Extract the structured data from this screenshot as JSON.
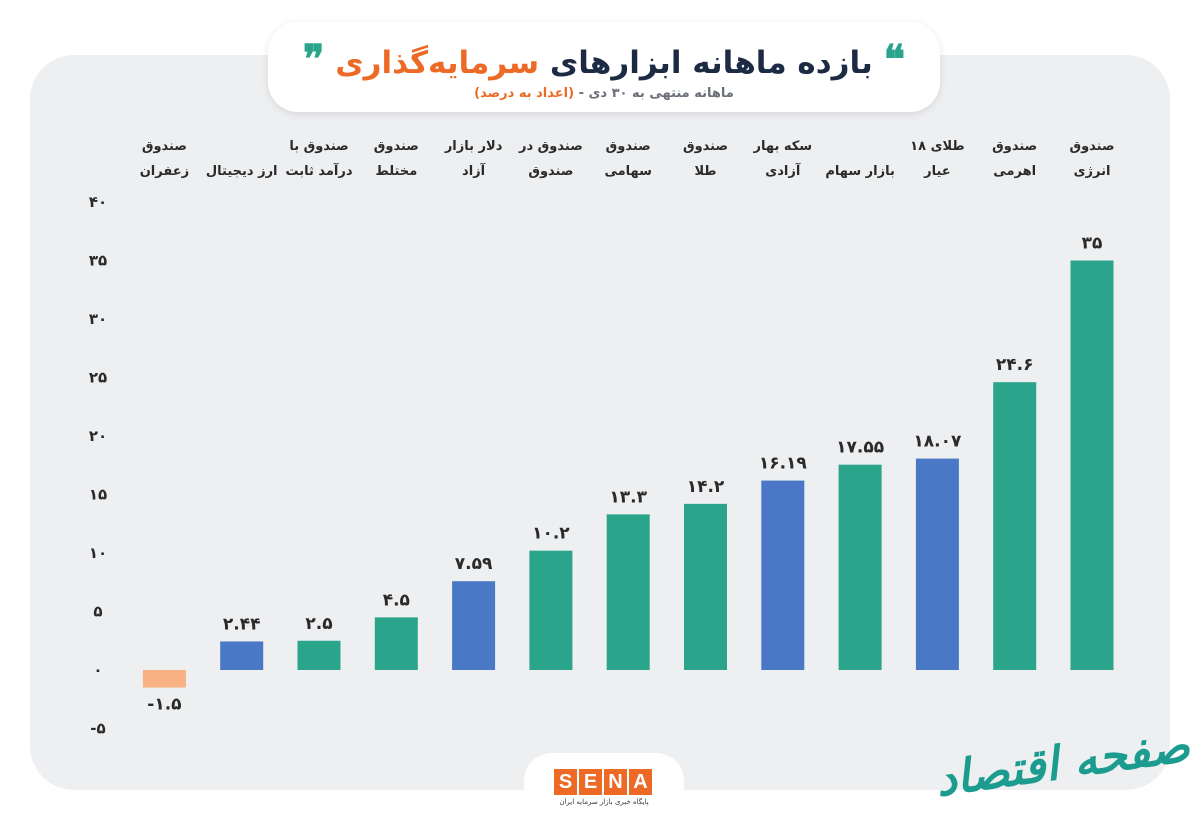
{
  "header": {
    "title_main": "بازده ماهانه ابزارهای",
    "title_accent": "سرمایه‌گذاری",
    "quote_open": "❝",
    "quote_close": "❞",
    "subtitle": "ماهانه منتهی به ۳۰ دی -",
    "subtitle_note": "(اعداد به درصد)"
  },
  "chart_data": {
    "type": "bar",
    "categories": [
      "صندوق انرژی",
      "صندوق اهرمی",
      "طلای ۱۸ عیار",
      "بازار سهام",
      "سکه بهار آزادی",
      "صندوق طلا",
      "صندوق سهامی",
      "صندوق در صندوق",
      "دلار بازار آزاد",
      "صندوق مختلط",
      "صندوق با درآمد ثابت",
      "ارز دیجیتال",
      "صندوق زعفران"
    ],
    "category_lines": [
      [
        "صندوق",
        "انرژی"
      ],
      [
        "صندوق",
        "اهرمی"
      ],
      [
        "طلای ۱۸",
        "عیار"
      ],
      [
        "",
        "بازار سهام"
      ],
      [
        "سکه بهار",
        "آزادی"
      ],
      [
        "صندوق",
        "طلا"
      ],
      [
        "صندوق",
        "سهامی"
      ],
      [
        "صندوق در",
        "صندوق"
      ],
      [
        "دلار بازار",
        "آزاد"
      ],
      [
        "صندوق",
        "مختلط"
      ],
      [
        "صندوق با",
        "درآمد ثابت"
      ],
      [
        "",
        "ارز دیجیتال"
      ],
      [
        "صندوق",
        "زعفران"
      ]
    ],
    "values": [
      35,
      24.6,
      18.07,
      17.55,
      16.19,
      14.2,
      13.3,
      10.2,
      7.59,
      4.5,
      2.5,
      2.44,
      -1.5
    ],
    "value_labels": [
      "۳۵",
      "۲۴.۶",
      "۱۸.۰۷",
      "۱۷.۵۵",
      "۱۶.۱۹",
      "۱۴.۲",
      "۱۳.۳",
      "۱۰.۲",
      "۷.۵۹",
      "۴.۵",
      "۲.۵",
      "۲.۴۴",
      "-۱.۵"
    ],
    "bar_colors": [
      "#2aa58c",
      "#2aa58c",
      "#4a78c6",
      "#2aa58c",
      "#4a78c6",
      "#2aa58c",
      "#2aa58c",
      "#2aa58c",
      "#4a78c6",
      "#2aa58c",
      "#2aa58c",
      "#4a78c6",
      "#f7b183"
    ],
    "yticks": [
      40,
      35,
      30,
      25,
      20,
      15,
      10,
      5,
      0,
      -5
    ],
    "ytick_labels": [
      "۴۰",
      "۳۵",
      "۳۰",
      "۲۵",
      "۲۰",
      "۱۵",
      "۱۰",
      "۵",
      "۰",
      "-۵"
    ],
    "ylim": [
      -5,
      40
    ],
    "grid": false
  },
  "brand": {
    "letters": [
      "S",
      "E",
      "N",
      "A"
    ],
    "tagline": "پایگاه خبری بازار سرمایه ایران"
  },
  "watermark": "صفحه اقتصاد"
}
